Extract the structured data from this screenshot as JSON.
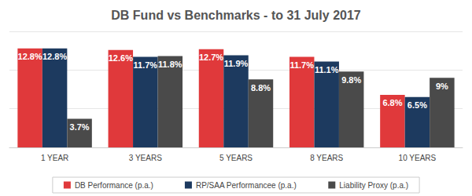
{
  "chart_data": {
    "type": "bar",
    "title": "DB Fund vs Benchmarks - to 31 July 2017",
    "categories": [
      "1 YEAR",
      "3 YEARS",
      "5 YEARS",
      "8 YEARS",
      "10 YEARS"
    ],
    "series": [
      {
        "name": "DB Performance (p.a.)",
        "color": "#e0393b",
        "values": [
          12.8,
          12.6,
          12.7,
          11.7,
          6.8
        ],
        "value_labels": [
          "12.8%",
          "12.6%",
          "12.7%",
          "11.7%",
          "6.8%"
        ]
      },
      {
        "name": "RP/SAA Performancee (p.a.)",
        "color": "#1d3a5f",
        "values": [
          12.8,
          11.7,
          11.9,
          11.1,
          6.5
        ],
        "value_labels": [
          "12.8%",
          "11.7%",
          "11.9%",
          "11.1%",
          "6.5%"
        ]
      },
      {
        "name": "Liability Proxy (p.a.)",
        "color": "#4a4a4a",
        "values": [
          3.7,
          11.8,
          8.8,
          9.8,
          9
        ],
        "value_labels": [
          "3.7%",
          "11.8%",
          "8.8%",
          "9.8%",
          "9%"
        ]
      }
    ],
    "ylim": [
      0,
      15
    ],
    "yticks": [
      0,
      5,
      10,
      15
    ],
    "grid": true,
    "legend": "bottom",
    "data_labels": true,
    "tick_labels": "x"
  }
}
